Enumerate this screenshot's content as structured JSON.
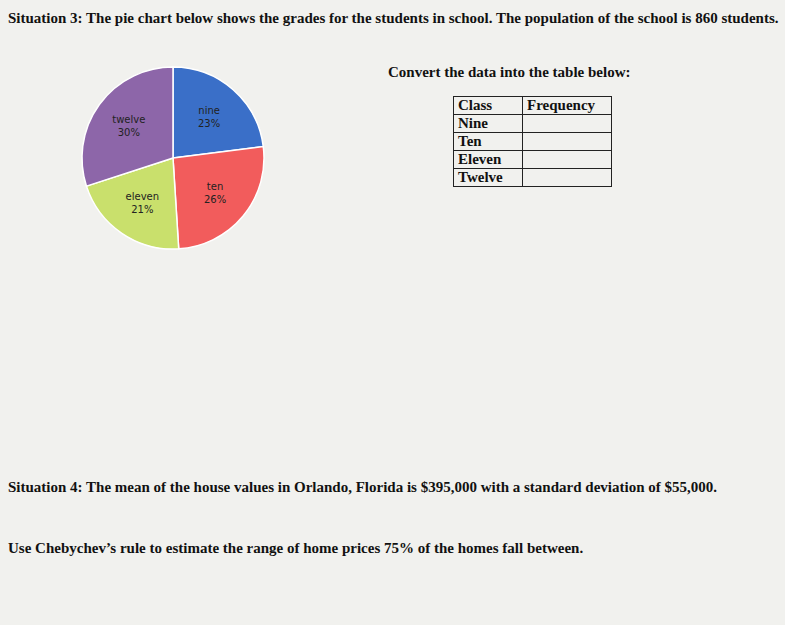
{
  "situation3": {
    "text": "Situation 3: The pie chart below shows the grades for the students in school.  The population of the school is 860 students.",
    "instruction": "Convert the data into the table below:"
  },
  "chart_data": {
    "type": "pie",
    "categories": [
      "nine",
      "ten",
      "eleven",
      "twelve"
    ],
    "values": [
      23,
      26,
      21,
      30
    ],
    "value_labels": [
      "23%",
      "26%",
      "21%",
      "30%"
    ],
    "colors": [
      "#3a6fc8",
      "#f25c5c",
      "#c9e06c",
      "#8d66a9"
    ],
    "data_labels": true
  },
  "table": {
    "header": [
      "Class",
      "Frequency"
    ],
    "rows": [
      "Nine",
      "Ten",
      "Eleven",
      "Twelve"
    ]
  },
  "situation4": {
    "text": "Situation 4: The mean of the house values in Orlando, Florida is $395,000 with a standard deviation of $55,000.",
    "question": "Use Chebychev’s rule to estimate the range of home prices 75% of the homes fall between."
  }
}
